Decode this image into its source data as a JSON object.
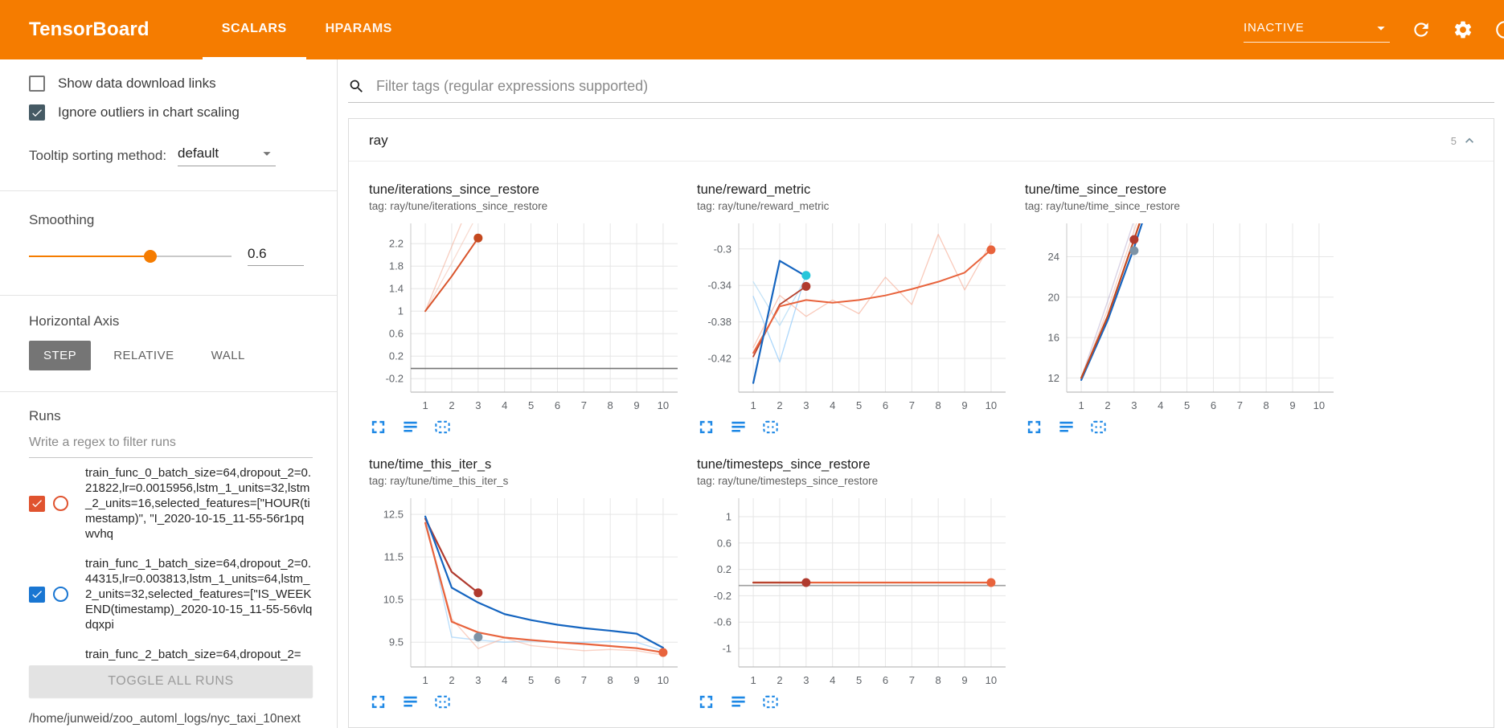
{
  "colors": {
    "header_bg": "#f57c00",
    "accent_orange": "#f57c00",
    "run_orange": "#e0532f",
    "run_blue": "#1976d2",
    "sidebar_checkbox": "#455a64",
    "chart_icon_blue": "#1e88e5"
  },
  "header": {
    "title": "TensorBoard",
    "tabs": [
      {
        "label": "SCALARS",
        "active": true
      },
      {
        "label": "HPARAMS",
        "active": false
      }
    ],
    "status_dropdown": {
      "value": "INACTIVE",
      "icon": "caret-down-icon"
    },
    "action_icons": [
      "refresh-icon",
      "settings-gear-icon",
      "help-icon"
    ]
  },
  "sidebar": {
    "checkboxes": [
      {
        "label": "Show data download links",
        "checked": false,
        "color": "#455a64"
      },
      {
        "label": "Ignore outliers in chart scaling",
        "checked": true,
        "color": "#455a64"
      }
    ],
    "tooltip_sorting": {
      "label": "Tooltip sorting method:",
      "value": "default"
    },
    "smoothing": {
      "label": "Smoothing",
      "value": "0.6"
    },
    "horizontal_axis": {
      "label": "Horizontal Axis",
      "options": [
        {
          "label": "STEP",
          "selected": true
        },
        {
          "label": "RELATIVE",
          "selected": false
        },
        {
          "label": "WALL",
          "selected": false
        }
      ]
    },
    "runs": {
      "label": "Runs",
      "filter_placeholder": "Write a regex to filter runs",
      "items": [
        {
          "label": "train_func_0_batch_size=64,dropout_2=0.21822,lr=0.0015956,lstm_1_units=32,lstm_2_units=16,selected_features=[\"HOUR(timestamp)\", \"I_2020-10-15_11-55-56r1pqwvhq",
          "checked": true,
          "color": "#e0532f",
          "partial": false
        },
        {
          "label": "train_func_1_batch_size=64,dropout_2=0.44315,lr=0.003813,lstm_1_units=64,lstm_2_units=32,selected_features=[\"IS_WEEKEND(timestamp)_2020-10-15_11-55-56vlqdqxpi",
          "checked": true,
          "color": "#1976d2",
          "partial": false
        },
        {
          "label": "train_func_2_batch_size=64,dropout_2=",
          "checked": null,
          "color": null,
          "partial": true
        }
      ],
      "toggle_all_label": "TOGGLE ALL RUNS",
      "log_path": "/home/junweid/zoo_automl_logs/nyc_taxi_10next"
    }
  },
  "main": {
    "filter_placeholder": "Filter tags (regular expressions supported)",
    "section": {
      "title": "ray",
      "count": "5",
      "collapse_icon": "chevron-up-icon"
    },
    "chart_toolbar_icons": [
      "fullscreen-icon",
      "lines-icon",
      "fit-domain-icon"
    ]
  },
  "chart_data": [
    {
      "type": "line",
      "title": "tune/iterations_since_restore",
      "tag": "tag: ray/tune/iterations_since_restore",
      "grid": true,
      "xticks": [
        1,
        2,
        3,
        4,
        5,
        6,
        7,
        8,
        9,
        10
      ],
      "xlim": [
        0.45,
        10.55
      ],
      "yticks": [
        -0.2,
        0.2,
        0.6,
        1,
        1.4,
        1.8,
        2.2
      ],
      "ylim": [
        -0.44,
        2.56
      ],
      "series": [
        {
          "name": "run-gray-flat",
          "color": "#757575",
          "width": 1.6,
          "opacity": 1,
          "x": [
            0.45,
            10.55
          ],
          "y": [
            -0.02,
            -0.02
          ]
        },
        {
          "name": "run-orange-raw-a",
          "color": "#f2a58c",
          "width": 1.3,
          "opacity": 0.55,
          "x": [
            1,
            2,
            3.2
          ],
          "y": [
            1,
            2.15,
            3.5
          ]
        },
        {
          "name": "run-orange-raw-b",
          "color": "#f2b9a5",
          "width": 1.3,
          "opacity": 0.5,
          "x": [
            1,
            2,
            3.4
          ],
          "y": [
            1,
            1.85,
            3.1
          ]
        },
        {
          "name": "run-orange-smoothed",
          "color": "#d9542b",
          "width": 2,
          "opacity": 1,
          "x": [
            1,
            2,
            3
          ],
          "y": [
            1,
            1.62,
            2.3
          ]
        }
      ],
      "markers": [
        {
          "x": 3,
          "y": 2.3,
          "color": "#c4491f"
        }
      ]
    },
    {
      "type": "line",
      "title": "tune/reward_metric",
      "tag": "tag: ray/tune/reward_metric",
      "grid": true,
      "xticks": [
        1,
        2,
        3,
        4,
        5,
        6,
        7,
        8,
        9,
        10
      ],
      "xlim": [
        0.45,
        10.55
      ],
      "yticks": [
        -0.42,
        -0.38,
        -0.34,
        -0.3
      ],
      "ylim": [
        -0.457,
        -0.272
      ],
      "series": [
        {
          "name": "run-blue-raw-a",
          "color": "#90caf9",
          "width": 1.3,
          "opacity": 0.75,
          "x": [
            1,
            2,
            3
          ],
          "y": [
            -0.352,
            -0.424,
            -0.327
          ]
        },
        {
          "name": "run-blue-raw-b",
          "color": "#b5dcf5",
          "width": 1.3,
          "opacity": 0.8,
          "x": [
            1,
            2,
            3
          ],
          "y": [
            -0.336,
            -0.384,
            -0.331
          ]
        },
        {
          "name": "run-orange-raw",
          "color": "#f7b29c",
          "width": 1.3,
          "opacity": 0.7,
          "x": [
            1,
            2,
            3,
            4,
            5,
            6,
            7,
            8,
            9,
            10
          ],
          "y": [
            -0.408,
            -0.351,
            -0.374,
            -0.356,
            -0.371,
            -0.331,
            -0.361,
            -0.284,
            -0.345,
            -0.293
          ]
        },
        {
          "name": "run-red-smoothed",
          "color": "#b8432e",
          "width": 1.8,
          "opacity": 1,
          "x": [
            1,
            2,
            3
          ],
          "y": [
            -0.418,
            -0.361,
            -0.341
          ]
        },
        {
          "name": "run-orange-smoothed",
          "color": "#e8633c",
          "width": 2,
          "opacity": 1,
          "x": [
            1,
            2,
            3,
            4,
            5,
            6,
            7,
            8,
            9,
            10
          ],
          "y": [
            -0.414,
            -0.363,
            -0.356,
            -0.359,
            -0.356,
            -0.351,
            -0.344,
            -0.336,
            -0.326,
            -0.301
          ]
        },
        {
          "name": "run-blue-smoothed",
          "color": "#1565c0",
          "width": 2.2,
          "opacity": 1,
          "x": [
            1,
            2,
            3
          ],
          "y": [
            -0.447,
            -0.313,
            -0.33
          ]
        }
      ],
      "markers": [
        {
          "x": 3,
          "y": -0.341,
          "color": "#b03a2e"
        },
        {
          "x": 3,
          "y": -0.329,
          "color": "#26c6da"
        },
        {
          "x": 10,
          "y": -0.301,
          "color": "#e8633c"
        }
      ]
    },
    {
      "type": "line",
      "title": "tune/time_since_restore",
      "tag": "tag: ray/tune/time_since_restore",
      "grid": true,
      "xticks": [
        1,
        2,
        3,
        4,
        5,
        6,
        7,
        8,
        9,
        10
      ],
      "xlim": [
        0.45,
        10.55
      ],
      "yticks": [
        12,
        16,
        20,
        24
      ],
      "ylim": [
        10.6,
        27.3
      ],
      "series": [
        {
          "name": "run-lavender-raw",
          "color": "#b3a7cc",
          "width": 1.4,
          "opacity": 0.5,
          "x": [
            1,
            2,
            3,
            3.6
          ],
          "y": [
            12,
            19.6,
            27.6,
            32
          ]
        },
        {
          "name": "run-gray-raw",
          "color": "#bdbdbd",
          "width": 1.4,
          "opacity": 0.6,
          "x": [
            1,
            2,
            3,
            3.6
          ],
          "y": [
            12,
            18.2,
            25.8,
            30
          ]
        },
        {
          "name": "run-pink-raw",
          "color": "#f2b4a0",
          "width": 1.4,
          "opacity": 0.55,
          "x": [
            1,
            2,
            3,
            3.6
          ],
          "y": [
            11.8,
            18.8,
            26.6,
            31
          ]
        },
        {
          "name": "run-blue-smoothed",
          "color": "#1565c0",
          "width": 2.2,
          "opacity": 1,
          "x": [
            1,
            2,
            3,
            3.45
          ],
          "y": [
            11.8,
            17.7,
            24.9,
            28.5
          ]
        },
        {
          "name": "run-red-smoothed",
          "color": "#c4491f",
          "width": 2.2,
          "opacity": 1,
          "x": [
            1,
            2,
            3,
            3.45
          ],
          "y": [
            12,
            18.1,
            25.7,
            29.2
          ]
        }
      ],
      "markers": [
        {
          "x": 3,
          "y": 25.7,
          "color": "#b03a2e"
        },
        {
          "x": 3,
          "y": 24.6,
          "color": "#7d93a6"
        }
      ]
    },
    {
      "type": "line",
      "title": "tune/time_this_iter_s",
      "tag": "tag: ray/tune/time_this_iter_s",
      "grid": true,
      "xticks": [
        1,
        2,
        3,
        4,
        5,
        6,
        7,
        8,
        9,
        10
      ],
      "xlim": [
        0.45,
        10.55
      ],
      "yticks": [
        9.5,
        10.5,
        11.5,
        12.5
      ],
      "ylim": [
        8.92,
        12.88
      ],
      "series": [
        {
          "name": "run-blue-raw",
          "color": "#90caf9",
          "width": 1.4,
          "opacity": 0.6,
          "x": [
            1,
            2,
            3,
            4,
            5,
            6,
            7,
            8,
            9,
            10
          ],
          "y": [
            12.45,
            9.62,
            9.55,
            9.5,
            9.53,
            9.5,
            9.5,
            9.52,
            9.5,
            9.3
          ]
        },
        {
          "name": "run-pink-raw",
          "color": "#f7b29c",
          "width": 1.4,
          "opacity": 0.6,
          "x": [
            1,
            2,
            3,
            4,
            5,
            6,
            7,
            8,
            9,
            10
          ],
          "y": [
            12.3,
            10.05,
            9.35,
            9.6,
            9.42,
            9.36,
            9.3,
            9.33,
            9.3,
            9.2
          ]
        },
        {
          "name": "run-red-smoothed",
          "color": "#b03a2e",
          "width": 2.2,
          "opacity": 1,
          "x": [
            1,
            2,
            3
          ],
          "y": [
            12.4,
            11.15,
            10.66
          ]
        },
        {
          "name": "run-blue-smoothed",
          "color": "#1565c0",
          "width": 2.2,
          "opacity": 1,
          "x": [
            1,
            2,
            3,
            4,
            5,
            6,
            7,
            8,
            9,
            10
          ],
          "y": [
            12.45,
            10.78,
            10.43,
            10.16,
            10.02,
            9.91,
            9.83,
            9.77,
            9.7,
            9.37
          ]
        },
        {
          "name": "run-orange-smoothed",
          "color": "#e8633c",
          "width": 2.2,
          "opacity": 1,
          "x": [
            1,
            2,
            3,
            4,
            5,
            6,
            7,
            8,
            9,
            10
          ],
          "y": [
            12.3,
            9.98,
            9.73,
            9.61,
            9.55,
            9.5,
            9.46,
            9.41,
            9.36,
            9.26
          ]
        }
      ],
      "markers": [
        {
          "x": 3,
          "y": 10.66,
          "color": "#b03a2e"
        },
        {
          "x": 3,
          "y": 9.62,
          "color": "#7d93a6"
        },
        {
          "x": 10,
          "y": 9.26,
          "color": "#e8633c"
        }
      ]
    },
    {
      "type": "line",
      "title": "tune/timesteps_since_restore",
      "tag": "tag: ray/tune/timesteps_since_restore",
      "grid": true,
      "xticks": [
        1,
        2,
        3,
        4,
        5,
        6,
        7,
        8,
        9,
        10
      ],
      "xlim": [
        0.45,
        10.55
      ],
      "yticks": [
        -1,
        -0.6,
        -0.2,
        0.2,
        0.6,
        1
      ],
      "ylim": [
        -1.28,
        1.28
      ],
      "series": [
        {
          "name": "run-gray-flat",
          "color": "#9e9e9e",
          "width": 1.6,
          "opacity": 1,
          "x": [
            0.45,
            10.55
          ],
          "y": [
            -0.045,
            -0.045
          ]
        },
        {
          "name": "run-orange-smoothed",
          "color": "#e8633c",
          "width": 2.2,
          "opacity": 1,
          "x": [
            1,
            10
          ],
          "y": [
            0,
            0
          ]
        },
        {
          "name": "run-red-smoothed",
          "color": "#b8432e",
          "width": 2.2,
          "opacity": 1,
          "x": [
            1,
            3
          ],
          "y": [
            0,
            0
          ]
        }
      ],
      "markers": [
        {
          "x": 3,
          "y": 0,
          "color": "#b03a2e"
        },
        {
          "x": 10,
          "y": 0,
          "color": "#e8633c"
        }
      ]
    }
  ]
}
